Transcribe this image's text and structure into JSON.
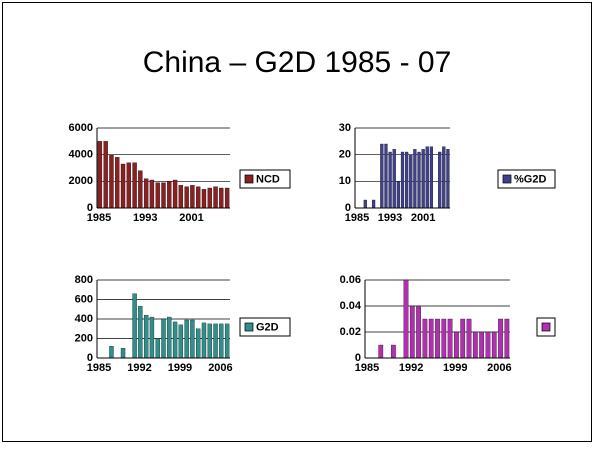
{
  "title": "China – G2D 1985 - 07",
  "chart_data": [
    {
      "type": "bar",
      "categories": [
        "1985",
        null,
        null,
        null,
        null,
        null,
        null,
        null,
        "1993",
        null,
        null,
        null,
        null,
        null,
        null,
        null,
        "2001",
        null,
        null,
        null,
        null,
        null,
        null
      ],
      "series": [
        {
          "name": "NCD",
          "color": "#8b2020",
          "values": [
            5000,
            5000,
            4000,
            3800,
            3300,
            3400,
            3400,
            2800,
            2200,
            2100,
            1900,
            1900,
            2000,
            2100,
            1700,
            1600,
            1700,
            1600,
            1400,
            1500,
            1600,
            1500,
            1500
          ]
        }
      ],
      "ylim": [
        0,
        6000
      ],
      "yticks": [
        0,
        2000,
        4000,
        6000
      ],
      "grid": true
    },
    {
      "type": "bar",
      "categories": [
        "1985",
        null,
        null,
        null,
        null,
        null,
        null,
        null,
        "1993",
        null,
        null,
        null,
        null,
        null,
        null,
        null,
        "2001",
        null,
        null,
        null,
        null,
        null,
        null
      ],
      "series": [
        {
          "name": "%G2D",
          "color": "#40408f",
          "values": [
            0,
            0,
            3,
            0,
            3,
            0,
            24,
            24,
            21,
            22,
            10,
            21,
            21,
            20,
            22,
            21,
            22,
            23,
            23,
            0,
            21,
            23,
            22
          ]
        }
      ],
      "ylim": [
        0,
        30
      ],
      "yticks": [
        0,
        10,
        20,
        30
      ],
      "grid": true
    },
    {
      "type": "bar",
      "categories": [
        "1985",
        null,
        null,
        null,
        null,
        null,
        null,
        "1992",
        null,
        null,
        null,
        null,
        null,
        null,
        "1999",
        null,
        null,
        null,
        null,
        null,
        null,
        "2006",
        null
      ],
      "series": [
        {
          "name": "G2D",
          "color": "#2f8f8a",
          "values": [
            0,
            0,
            120,
            0,
            100,
            0,
            660,
            530,
            440,
            420,
            200,
            400,
            420,
            370,
            340,
            390,
            390,
            300,
            360,
            350,
            350,
            350,
            350
          ]
        }
      ],
      "ylim": [
        0,
        800
      ],
      "yticks": [
        0,
        200,
        400,
        600,
        800
      ],
      "grid": true
    },
    {
      "type": "bar",
      "categories": [
        "1985",
        null,
        null,
        null,
        null,
        null,
        null,
        "1992",
        null,
        null,
        null,
        null,
        null,
        null,
        "1999",
        null,
        null,
        null,
        null,
        null,
        null,
        "2006",
        null
      ],
      "series": [
        {
          "color": "#b030b0",
          "values": [
            0,
            0,
            0.01,
            0,
            0.01,
            0,
            0.06,
            0.04,
            0.04,
            0.03,
            0.03,
            0.03,
            0.03,
            0.03,
            0.02,
            0.03,
            0.03,
            0.02,
            0.02,
            0.02,
            0.02,
            0.03,
            0.03
          ]
        }
      ],
      "ylim": [
        0,
        0.06
      ],
      "yticks": [
        0,
        0.02,
        0.04,
        0.06
      ],
      "grid": true
    }
  ]
}
